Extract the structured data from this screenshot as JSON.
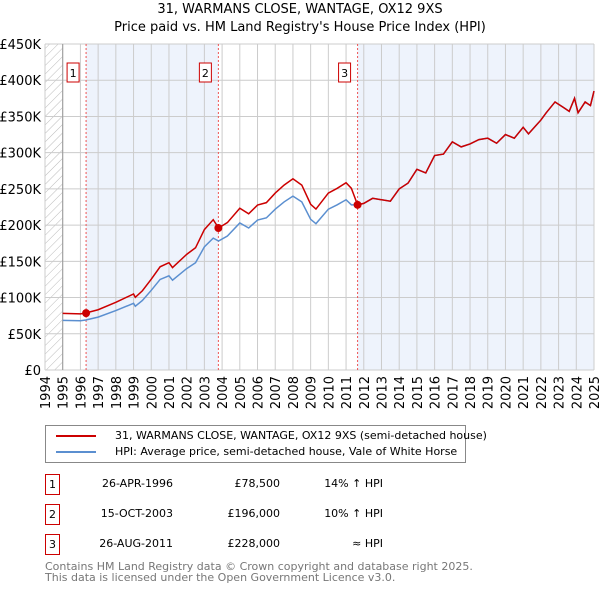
{
  "title": "31, WARMANS CLOSE, WANTAGE, OX12 9XS",
  "subtitle": "Price paid vs. HM Land Registry's House Price Index (HPI)",
  "chart_data": {
    "type": "line",
    "xlim": [
      1994,
      2025
    ],
    "ylim": [
      0,
      450000
    ],
    "x_ticks": [
      "1994",
      "1995",
      "1996",
      "1997",
      "1998",
      "1999",
      "2000",
      "2001",
      "2002",
      "2003",
      "2004",
      "2005",
      "2006",
      "2007",
      "2008",
      "2009",
      "2010",
      "2011",
      "2012",
      "2013",
      "2014",
      "2015",
      "2016",
      "2017",
      "2018",
      "2019",
      "2020",
      "2021",
      "2022",
      "2023",
      "2024",
      "2025"
    ],
    "y_ticks": [
      {
        "v": 0,
        "l": "£0"
      },
      {
        "v": 50000,
        "l": "£50K"
      },
      {
        "v": 100000,
        "l": "£100K"
      },
      {
        "v": 150000,
        "l": "£150K"
      },
      {
        "v": 200000,
        "l": "£200K"
      },
      {
        "v": 250000,
        "l": "£250K"
      },
      {
        "v": 300000,
        "l": "£300K"
      },
      {
        "v": 350000,
        "l": "£350K"
      },
      {
        "v": 400000,
        "l": "£400K"
      },
      {
        "v": 450000,
        "l": "£450K"
      }
    ],
    "x": [
      1995,
      1996,
      1996.3,
      1997,
      1998,
      1999,
      1999.1,
      1999.5,
      2000,
      2000.5,
      2001,
      2001.2,
      2002,
      2002.5,
      2003,
      2003.5,
      2003.8,
      2004.3,
      2005,
      2005.5,
      2006,
      2006.5,
      2007,
      2007.5,
      2008,
      2008.5,
      2009,
      2009.3,
      2010,
      2010.5,
      2011,
      2011.3,
      2011.65,
      2012,
      2012.5,
      2013.5,
      2014,
      2014.5,
      2015,
      2015.5,
      2016,
      2016.5,
      2017,
      2017.5,
      2018,
      2018.5,
      2019,
      2019.5,
      2020,
      2020.5,
      2021,
      2021.3,
      2022,
      2022.3,
      2022.8,
      2023.3,
      2023.6,
      2023.9,
      2024.1,
      2024.5,
      2024.8,
      2025
    ],
    "series": [
      {
        "name": "31, WARMANS CLOSE, WANTAGE, OX12 9XS (semi-detached house)",
        "color": "#cc0000",
        "values": [
          78100,
          77500,
          78700,
          83200,
          93500,
          104900,
          100300,
          109400,
          125400,
          142500,
          148200,
          141400,
          159600,
          168700,
          193800,
          207500,
          196000,
          203500,
          223300,
          215600,
          227700,
          231000,
          244200,
          255200,
          264000,
          255200,
          228800,
          222200,
          244200,
          250800,
          258500,
          250800,
          228000,
          230000,
          237000,
          233000,
          250000,
          258000,
          277000,
          272000,
          296000,
          298000,
          315000,
          308000,
          312000,
          318000,
          320000,
          313000,
          325000,
          320000,
          335000,
          326000,
          345000,
          355000,
          370000,
          362000,
          357000,
          375000,
          355000,
          370000,
          365000,
          385000
        ]
      },
      {
        "name": "HPI: Average price, semi-detached house, Vale of White Horse",
        "color": "#5b8fd0",
        "values": [
          68500,
          68000,
          69000,
          73000,
          82000,
          92000,
          88000,
          96000,
          110000,
          125000,
          130000,
          124000,
          140000,
          148000,
          170000,
          182000,
          178000,
          185000,
          203000,
          196000,
          207000,
          210000,
          222000,
          232000,
          240000,
          232000,
          208000,
          202000,
          222000,
          228000,
          235000,
          228000,
          228000,
          230000,
          237000,
          233000,
          250000,
          258000,
          277000,
          272000,
          296000,
          298000,
          315000,
          308000,
          312000,
          318000,
          320000,
          313000,
          325000,
          320000,
          335000,
          326000,
          345000,
          355000,
          370000,
          362000,
          357000,
          375000,
          355000,
          370000,
          365000,
          385000
        ]
      }
    ],
    "sales": [
      {
        "label": "1",
        "x": 1996.32,
        "value": 78500,
        "date": "26-APR-1996",
        "price": "£78,500",
        "hpi": "14% ↑ HPI"
      },
      {
        "label": "2",
        "x": 2003.79,
        "value": 196000,
        "date": "15-OCT-2003",
        "price": "£196,000",
        "hpi": "10% ↑ HPI"
      },
      {
        "label": "3",
        "x": 2011.65,
        "value": 228000,
        "date": "26-AUG-2011",
        "price": "£228,000",
        "hpi": "≈ HPI"
      }
    ],
    "legend_placement": "below"
  },
  "footer": [
    "Contains HM Land Registry data © Crown copyright and database right 2025.",
    "This data is licensed under the Open Government Licence v3.0."
  ]
}
